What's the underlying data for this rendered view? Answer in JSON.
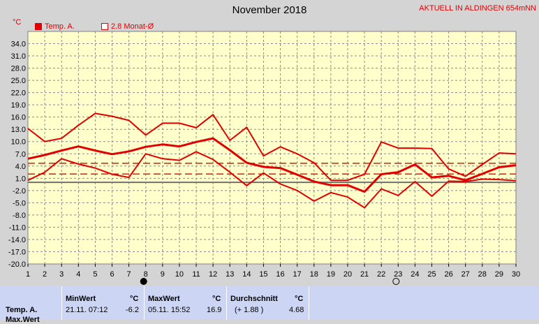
{
  "title": "November 2018",
  "station": "AKTUELL IN ALDINGEN 654mNN",
  "unit": "°C",
  "legend": [
    {
      "label": "Temp. A.",
      "filled": true
    },
    {
      "label": "2.8 Monat-Ø",
      "filled": false
    }
  ],
  "colors": {
    "series": "#e00000",
    "plot_bg": "#ffffcc",
    "grid": "#8a8a8a",
    "zero_line": "#707070"
  },
  "chart_data": {
    "type": "line",
    "x": [
      1,
      2,
      3,
      4,
      5,
      6,
      7,
      8,
      9,
      10,
      11,
      12,
      13,
      14,
      15,
      16,
      17,
      18,
      19,
      20,
      21,
      22,
      23,
      24,
      25,
      26,
      27,
      28,
      29,
      30
    ],
    "xlim": [
      1,
      30
    ],
    "ylim": [
      -20,
      37
    ],
    "yticks": [
      34.0,
      31.0,
      28.0,
      25.0,
      22.0,
      19.0,
      16.0,
      13.0,
      10.0,
      7.0,
      4.0,
      1.0,
      -2.0,
      -5.0,
      -8.0,
      -11.0,
      -14.0,
      -17.0,
      -20.0
    ],
    "ytick_labels": [
      "34.0",
      "31.0",
      "28.0",
      "25.0",
      "22.0",
      "19.0",
      "16.0",
      "13.0",
      "10.0",
      "7.0",
      "4.0",
      "1.0",
      "-2.0",
      "-5.0",
      "-8.0",
      "-11.0",
      "-14.0",
      "-17.0",
      "-20.0"
    ],
    "grid": true,
    "series": [
      {
        "role": "max",
        "values": [
          13.2,
          10.0,
          10.8,
          14.0,
          16.9,
          16.2,
          15.2,
          11.6,
          14.5,
          14.5,
          13.4,
          16.6,
          10.3,
          13.5,
          6.5,
          8.7,
          7.0,
          4.8,
          0.5,
          0.5,
          2.0,
          9.9,
          8.4,
          8.4,
          8.3,
          3.3,
          1.5,
          4.4,
          7.2,
          7.0
        ]
      },
      {
        "role": "mean",
        "values": [
          5.8,
          6.7,
          7.8,
          8.8,
          7.8,
          6.9,
          7.6,
          8.7,
          9.3,
          8.8,
          9.9,
          10.8,
          7.9,
          4.8,
          3.8,
          3.5,
          1.9,
          0.2,
          -0.7,
          -0.7,
          -2.3,
          2.0,
          2.5,
          4.4,
          1.2,
          1.6,
          0.5,
          2.1,
          3.7,
          4.2
        ]
      },
      {
        "role": "min",
        "values": [
          0.5,
          2.5,
          5.8,
          4.5,
          3.5,
          2.0,
          1.2,
          7.0,
          5.8,
          5.4,
          7.5,
          5.6,
          2.5,
          -0.8,
          2.3,
          -0.4,
          -2.0,
          -4.6,
          -2.5,
          -3.6,
          -6.2,
          -1.6,
          -3.2,
          0.2,
          -3.4,
          0.3,
          0.2,
          0.8,
          0.7,
          0.4
        ]
      }
    ],
    "monthly_mean": {
      "label": "2.8 Monat-Ø",
      "value": 2.8
    },
    "band_lines": [
      4.68,
      2.05
    ],
    "zero_line": 0,
    "moon_phases": [
      {
        "day": 8,
        "phase": "new-moon"
      },
      {
        "day": 23,
        "phase": "full-moon"
      }
    ]
  },
  "stats": {
    "header": {
      "min": "MinWert",
      "max": "MaxWert",
      "avg": "Durchschnitt",
      "unit": "°C"
    },
    "rows": [
      {
        "label": "Temp. A.",
        "min_time": "21.11.  07:12",
        "min_value": "-6.2",
        "max_time": "05.11.  15:52",
        "max_value": "16.9",
        "avg_dev": "(+ 1.88 )",
        "avg_value": "4.68"
      },
      {
        "label": "Max.Wert"
      }
    ]
  }
}
